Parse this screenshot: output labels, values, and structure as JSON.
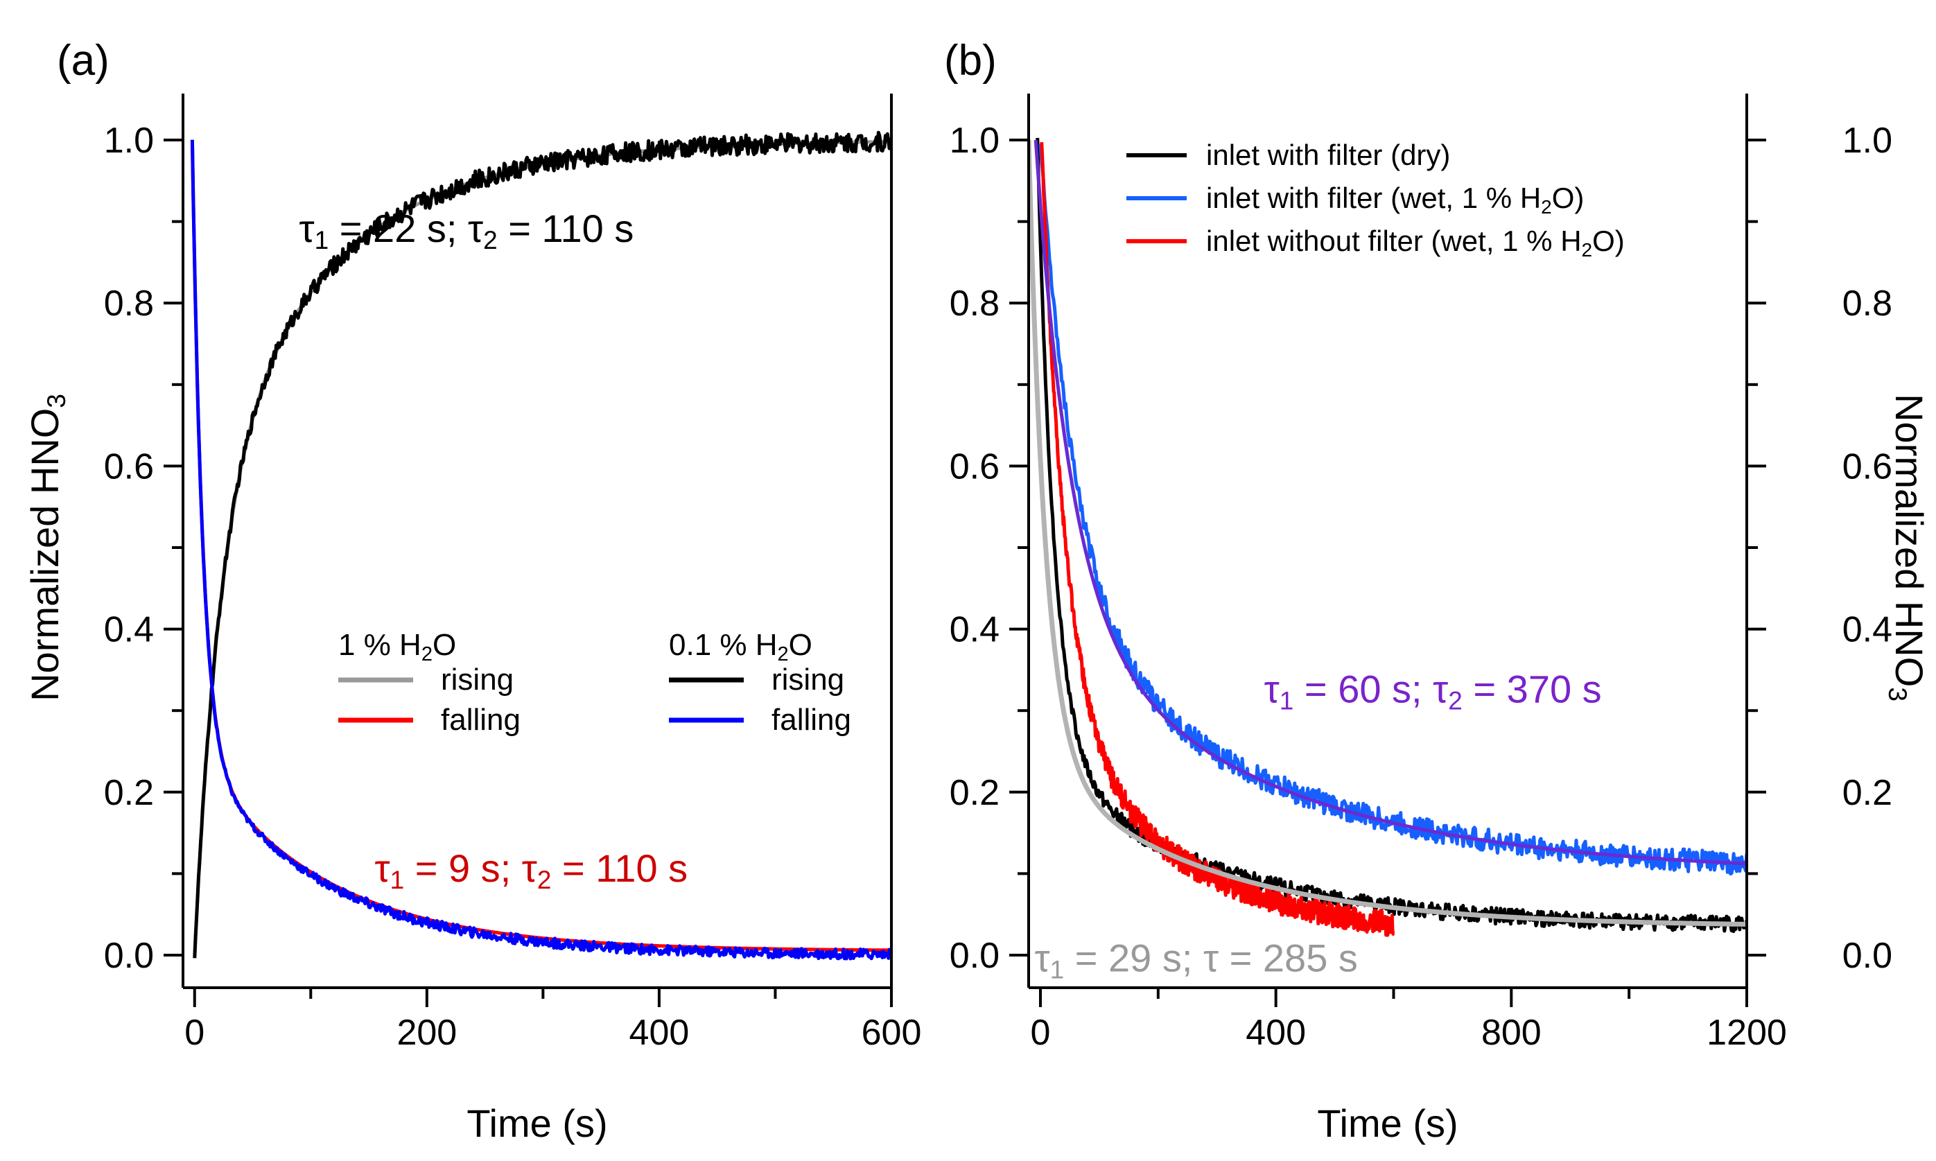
{
  "chart_data": [
    {
      "panel_label": "(a)",
      "type": "line",
      "xlabel": "Time (s)",
      "ylabel": {
        "main": "Normalized HNO",
        "sub": "3"
      },
      "xlim": [
        -10,
        600
      ],
      "ylim": [
        -0.04,
        1.04
      ],
      "xticks": [
        0,
        200,
        400,
        600
      ],
      "xminor": [
        100,
        300,
        500
      ],
      "yticks": [
        0.0,
        0.2,
        0.4,
        0.6,
        0.8,
        1.0
      ],
      "legend": {
        "groups": [
          {
            "title": {
              "main": "1 % H",
              "sub": "2",
              "tail": "O"
            },
            "entries": [
              "rising",
              "falling"
            ],
            "colors": [
              "#999999",
              "#ff0000"
            ]
          },
          {
            "title": {
              "main": "0.1 % H",
              "sub": "2",
              "tail": "O"
            },
            "entries": [
              "rising",
              "falling"
            ],
            "colors": [
              "#000000",
              "#0000ff"
            ]
          }
        ],
        "placement": "lower-right"
      },
      "annotations": [
        {
          "color": "#000000",
          "parts": [
            {
              "t": "τ"
            },
            {
              "t": "1",
              "sub": true
            },
            {
              "t": " = 22 s; τ"
            },
            {
              "t": "2",
              "sub": true
            },
            {
              "t": " = 110 s"
            }
          ],
          "anchor": [
            90,
            0.875
          ]
        },
        {
          "color": "#cc0000",
          "parts": [
            {
              "t": "τ"
            },
            {
              "t": "1",
              "sub": true
            },
            {
              "t": " = 9 s; τ"
            },
            {
              "t": "2",
              "sub": true
            },
            {
              "t": " = 110 s"
            }
          ],
          "anchor": [
            155,
            0.09
          ]
        }
      ],
      "series": [
        {
          "name": "1 % H2O rising",
          "color": "#999999",
          "width": 5,
          "model": {
            "kind": "rise",
            "a": 0.55,
            "tau1": 22,
            "tau2": 110,
            "start": 0
          },
          "x": [
            0,
            20,
            50,
            100,
            200,
            300,
            400,
            500,
            600
          ],
          "y": [
            0.0,
            0.37,
            0.68,
            0.83,
            0.94,
            0.97,
            0.99,
            0.995,
            0.995
          ]
        },
        {
          "name": "0.1 % H2O rising",
          "color": "#000000",
          "width": 5,
          "model": {
            "kind": "rise",
            "a": 0.55,
            "tau1": 22,
            "tau2": 110,
            "start": 0
          },
          "noise": 0.012,
          "x": [
            0,
            20,
            50,
            100,
            200,
            300,
            400,
            500,
            600
          ],
          "y": [
            0.0,
            0.37,
            0.68,
            0.84,
            0.94,
            0.97,
            0.99,
            1.0,
            1.0
          ]
        },
        {
          "name": "1 % H2O falling",
          "color": "#ff0000",
          "width": 5,
          "model": {
            "kind": "decay",
            "a": 0.75,
            "tau1": 9,
            "tau2": 110,
            "offset": 0.005,
            "start": -2
          },
          "x": [
            0,
            10,
            50,
            100,
            200,
            300,
            400,
            600
          ],
          "y": [
            1.0,
            0.38,
            0.15,
            0.09,
            0.04,
            0.02,
            0.01,
            0.005
          ]
        },
        {
          "name": "0.1 % H2O falling",
          "color": "#0000ff",
          "width": 5,
          "model": {
            "kind": "decay",
            "a": 0.75,
            "tau1": 9,
            "tau2": 110,
            "offset": 0.0,
            "start": -2
          },
          "noise": 0.006,
          "x": [
            0,
            10,
            50,
            100,
            200,
            300,
            400,
            600
          ],
          "y": [
            1.0,
            0.38,
            0.15,
            0.09,
            0.04,
            0.02,
            0.01,
            0.0
          ]
        }
      ]
    },
    {
      "panel_label": "(b)",
      "type": "line",
      "xlabel": "Time (s)",
      "ylabel_right": {
        "main": "Normalized HNO",
        "sub": "3"
      },
      "xlim": [
        -20,
        1200
      ],
      "ylim": [
        -0.04,
        1.04
      ],
      "xticks": [
        0,
        400,
        800,
        1200
      ],
      "xminor": [
        200,
        600,
        1000
      ],
      "yticks": [
        0.0,
        0.2,
        0.4,
        0.6,
        0.8,
        1.0
      ],
      "legend": {
        "entries": [
          {
            "parts": [
              {
                "t": "inlet with filter (dry)"
              }
            ],
            "color": "#000000"
          },
          {
            "parts": [
              {
                "t": "inlet with filter (wet, 1 % H"
              },
              {
                "t": "2",
                "sub": true
              },
              {
                "t": "O)"
              }
            ],
            "color": "#1560ff"
          },
          {
            "parts": [
              {
                "t": "inlet without filter (wet, 1 % H"
              },
              {
                "t": "2",
                "sub": true
              },
              {
                "t": "O)"
              }
            ],
            "color": "#ff0000"
          }
        ],
        "placement": "top-right"
      },
      "annotations": [
        {
          "color": "#7a22cc",
          "parts": [
            {
              "t": "τ"
            },
            {
              "t": "1",
              "sub": true
            },
            {
              "t": " = 60 s; τ"
            },
            {
              "t": "2",
              "sub": true
            },
            {
              "t": " = 370 s"
            }
          ],
          "anchor": [
            380,
            0.31
          ]
        },
        {
          "color": "#999999",
          "parts": [
            {
              "t": "τ"
            },
            {
              "t": "1",
              "sub": true
            },
            {
              "t": " = 29 s; τ = 285 s"
            }
          ],
          "anchor": [
            -10,
            -0.02
          ]
        }
      ],
      "series": [
        {
          "name": "inlet with filter (dry)",
          "color": "#000000",
          "width": 5,
          "model": {
            "kind": "decay",
            "a": 0.76,
            "tau1": 29,
            "tau2": 285,
            "offset": 0.035,
            "start": -5
          },
          "noise": 0.01,
          "x": [
            0,
            100,
            200,
            400,
            800,
            1200
          ],
          "y": [
            1.0,
            0.2,
            0.12,
            0.07,
            0.05,
            0.04
          ]
        },
        {
          "name": "inlet with filter (wet, 1 % H2O)",
          "color": "#1560ff",
          "width": 5,
          "model": {
            "kind": "decay",
            "a": 0.58,
            "tau1": 60,
            "tau2": 370,
            "offset": 0.1,
            "start": 0
          },
          "noise": 0.014,
          "x": [
            0,
            100,
            200,
            400,
            800,
            1200
          ],
          "y": [
            1.0,
            0.52,
            0.4,
            0.25,
            0.14,
            0.1
          ]
        },
        {
          "name": "inlet without filter (wet, 1 % H2O)",
          "color": "#ff0000",
          "width": 5,
          "model": {
            "kind": "decay",
            "a": 0.7,
            "tau1": 40,
            "tau2": 220,
            "offset": 0.02,
            "start": 2
          },
          "noise": 0.015,
          "x": [
            0,
            100,
            200,
            400,
            600
          ],
          "y": [
            1.0,
            0.26,
            0.15,
            0.08,
            0.05
          ]
        },
        {
          "name": "fit (dry)",
          "color": "#b3b3b3",
          "width": 7,
          "model": {
            "kind": "decay",
            "a": 0.76,
            "tau1": 29,
            "tau2": 285,
            "offset": 0.035,
            "start": -20
          },
          "x": [
            -20,
            100,
            400,
            800,
            1200
          ],
          "y": [
            1.0,
            0.19,
            0.08,
            0.05,
            0.04
          ]
        },
        {
          "name": "fit (wet)",
          "color": "#6a2ad2",
          "width": 5,
          "model": {
            "kind": "decay",
            "a": 0.58,
            "tau1": 60,
            "tau2": 370,
            "offset": 0.1,
            "start": -8
          },
          "x": [
            0,
            400,
            800,
            1200
          ],
          "y": [
            1.0,
            0.25,
            0.14,
            0.1
          ]
        }
      ]
    }
  ]
}
